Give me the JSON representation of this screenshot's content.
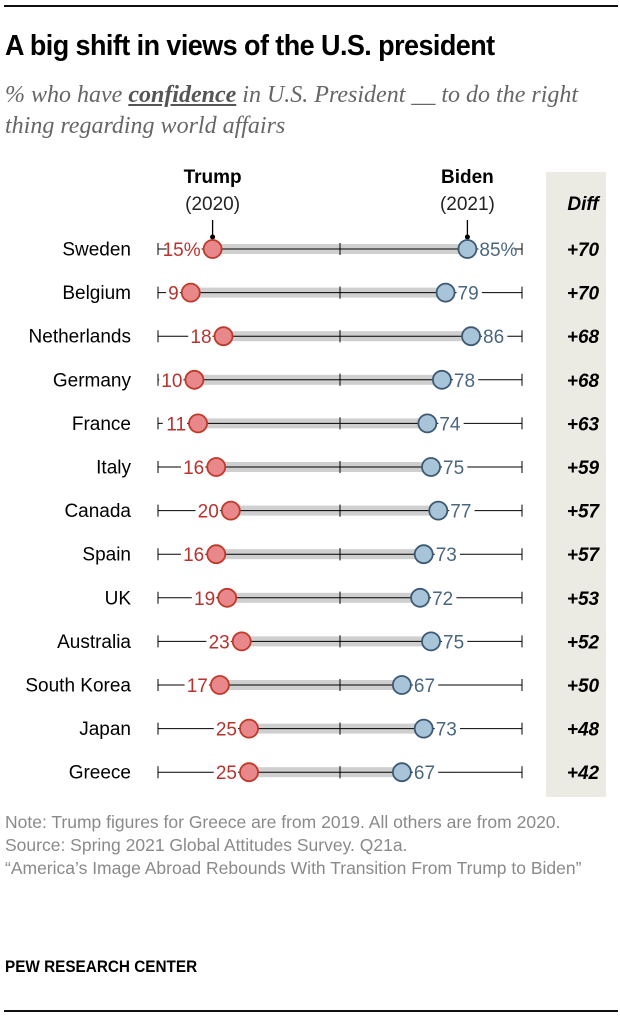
{
  "title": "A big shift in views of the U.S. president",
  "subtitle": {
    "before": "% who have ",
    "emphasis": "confidence",
    "after": " in U.S. President __ to do the right thing regarding world affairs"
  },
  "colors": {
    "trump": "#e8888a",
    "trump_stroke": "#c0392b",
    "trump_text": "#b8322e",
    "biden": "#a8c4d8",
    "biden_stroke": "#3d5a75",
    "biden_text": "#4a6680",
    "range_bar": "#cfcfcf",
    "diff_bg": "#ecebe3"
  },
  "chart_data": {
    "type": "dot-range",
    "title": "A big shift in views of the U.S. president",
    "xlim": [
      0,
      100
    ],
    "axis_ticks": [
      0,
      50,
      100
    ],
    "series": [
      {
        "name": "Trump",
        "sublabel": "(2020)"
      },
      {
        "name": "Biden",
        "sublabel": "(2021)"
      }
    ],
    "diff_header": "Diff",
    "categories": [
      "Sweden",
      "Belgium",
      "Netherlands",
      "Germany",
      "France",
      "Italy",
      "Canada",
      "Spain",
      "UK",
      "Australia",
      "South Korea",
      "Japan",
      "Greece"
    ],
    "trump": [
      15,
      9,
      18,
      10,
      11,
      16,
      20,
      16,
      19,
      23,
      17,
      25,
      25
    ],
    "biden": [
      85,
      79,
      86,
      78,
      74,
      75,
      77,
      73,
      72,
      75,
      67,
      73,
      67
    ],
    "diff": [
      "+70",
      "+70",
      "+68",
      "+68",
      "+63",
      "+59",
      "+57",
      "+57",
      "+53",
      "+52",
      "+50",
      "+48",
      "+42"
    ],
    "first_row_suffix": "%"
  },
  "notes": [
    "Note: Trump figures for Greece are from 2019. All others are from 2020.",
    "Source: Spring 2021 Global Attitudes Survey. Q21a.",
    "“America’s Image Abroad Rebounds With Transition From Trump to Biden”"
  ],
  "brand": "PEW RESEARCH CENTER"
}
